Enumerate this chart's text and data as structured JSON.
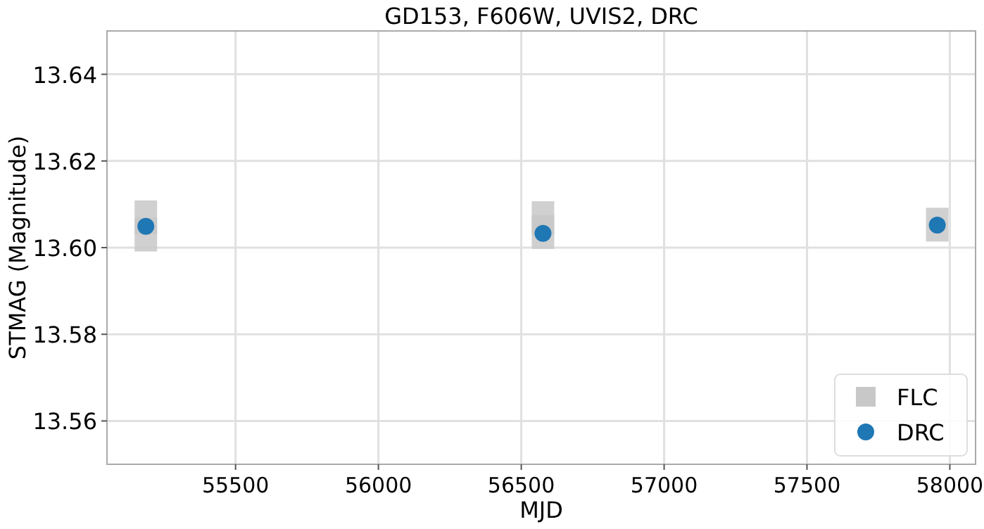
{
  "chart_data": {
    "type": "scatter",
    "title": "GD153, F606W, UVIS2, DRC",
    "xlabel": "MJD",
    "ylabel": "STMAG (Magnitude)",
    "series": [
      {
        "name": "FLC",
        "color": "#c8c8c8",
        "marker": "square",
        "x": [
          55186,
          55186,
          56576,
          56576,
          57956
        ],
        "values": [
          13.607,
          13.603,
          13.6068,
          13.6036,
          13.6053
        ]
      },
      {
        "name": "DRC",
        "color": "#1f77b4",
        "marker": "circle",
        "x": [
          55186,
          56576,
          57956
        ],
        "values": [
          13.6049,
          13.6033,
          13.6052
        ]
      }
    ],
    "xlim": [
      55050,
      58090
    ],
    "xticks": [
      55500,
      56000,
      56500,
      57000,
      57500,
      58000
    ],
    "ylim": [
      13.55,
      13.65
    ],
    "yticks": [
      13.56,
      13.58,
      {
        "value": 13.6,
        "label": "13.60"
      },
      13.62,
      13.64
    ],
    "grid": true,
    "legend": "bottom right"
  }
}
